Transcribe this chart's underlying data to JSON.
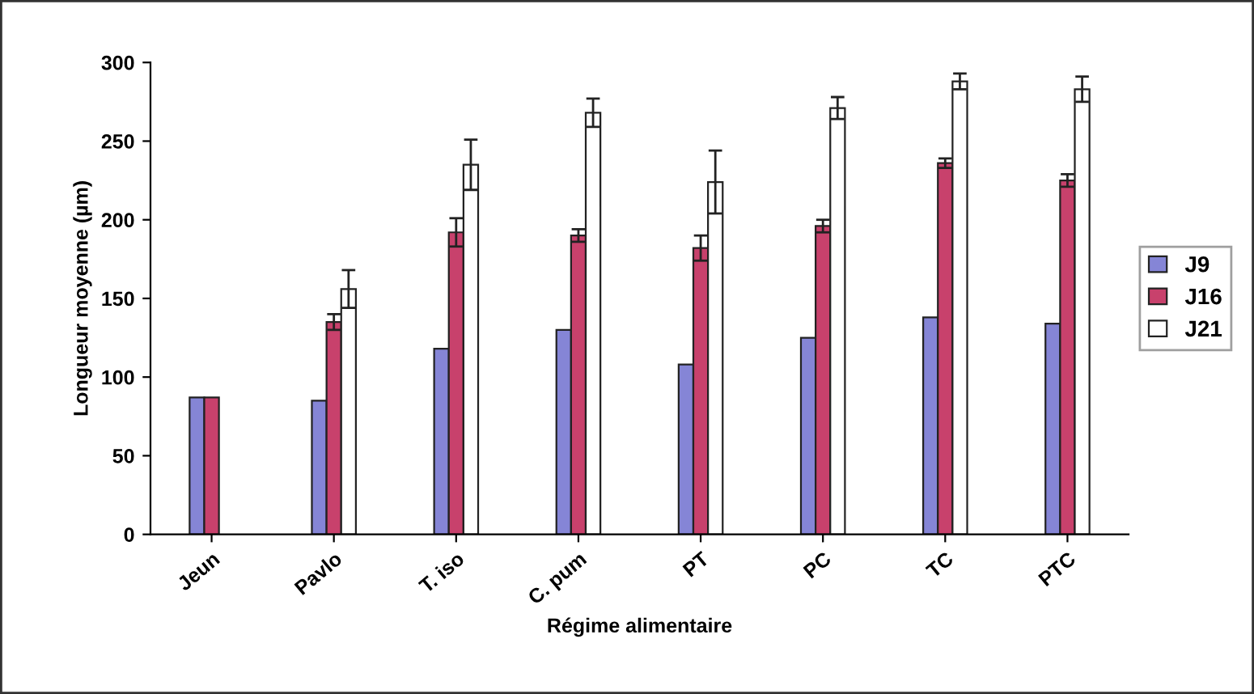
{
  "chart_data": {
    "type": "bar",
    "xlabel": "Régime alimentaire",
    "ylabel": "Longueur moyenne (µm)",
    "categories": [
      "Jeun",
      "Pavlo",
      "T. iso",
      "C. pum",
      "PT",
      "PC",
      "TC",
      "PTC"
    ],
    "series": [
      {
        "name": "J9",
        "color": "#8585d6",
        "values": [
          87,
          85,
          118,
          130,
          108,
          125,
          138,
          134
        ]
      },
      {
        "name": "J16",
        "color": "#c8416c",
        "values": [
          87,
          135,
          192,
          190,
          182,
          196,
          236,
          225
        ],
        "errors": [
          null,
          5,
          9,
          4,
          8,
          4,
          3,
          4
        ]
      },
      {
        "name": "J21",
        "color": "#ffffff",
        "values": [
          null,
          156,
          235,
          268,
          224,
          271,
          288,
          283
        ],
        "errors": [
          null,
          12,
          16,
          9,
          20,
          7,
          5,
          8
        ]
      }
    ],
    "ylim": [
      0,
      300
    ],
    "yticks": [
      0,
      50,
      100,
      150,
      200,
      250,
      300
    ],
    "grid": false,
    "legend": "right"
  }
}
